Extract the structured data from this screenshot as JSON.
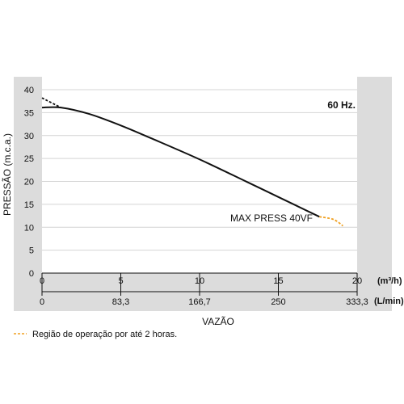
{
  "chart_data": {
    "type": "line",
    "frequency_label": "60 Hz.",
    "ylabel": "PRESSÃO (m.c.a.)",
    "xlabel": "VAZÃO",
    "x_unit_primary": "(m³/h)",
    "x_unit_secondary": "(L/min)",
    "xlim": [
      0,
      20
    ],
    "ylim": [
      0,
      40
    ],
    "y_ticks": [
      0,
      5,
      10,
      15,
      20,
      25,
      30,
      35,
      40
    ],
    "x_ticks_primary": [
      {
        "value": 0,
        "label": "0"
      },
      {
        "value": 5,
        "label": "5"
      },
      {
        "value": 10,
        "label": "10"
      },
      {
        "value": 15,
        "label": "15"
      },
      {
        "value": 20,
        "label": "20"
      }
    ],
    "x_ticks_secondary": [
      {
        "value": 0,
        "label": "0"
      },
      {
        "value": 5,
        "label": "83,3"
      },
      {
        "value": 10,
        "label": "166,7"
      },
      {
        "value": 15,
        "label": "250"
      },
      {
        "value": 20,
        "label": "333,3"
      }
    ],
    "grid": true,
    "series": [
      {
        "label": "MAX PRESS 40VF",
        "color": "#111111",
        "x": [
          0,
          1.2,
          3,
          5,
          7,
          10,
          13,
          15,
          17.6
        ],
        "y": [
          36.1,
          36.1,
          34.7,
          32.2,
          29.3,
          24.8,
          19.9,
          16.6,
          12.3
        ]
      }
    ],
    "dotted_segments": [
      {
        "color": "#111111",
        "x": [
          0,
          1.2
        ],
        "y": [
          38.2,
          36.1
        ]
      },
      {
        "color": "#f0a020",
        "x": [
          17.6,
          18.5,
          19.1
        ],
        "y": [
          12.3,
          11.7,
          10.3
        ]
      }
    ],
    "legend": {
      "text": "Região de operação por até 2 horas.",
      "color": "#f0a020",
      "placement": "bottom-left"
    }
  }
}
